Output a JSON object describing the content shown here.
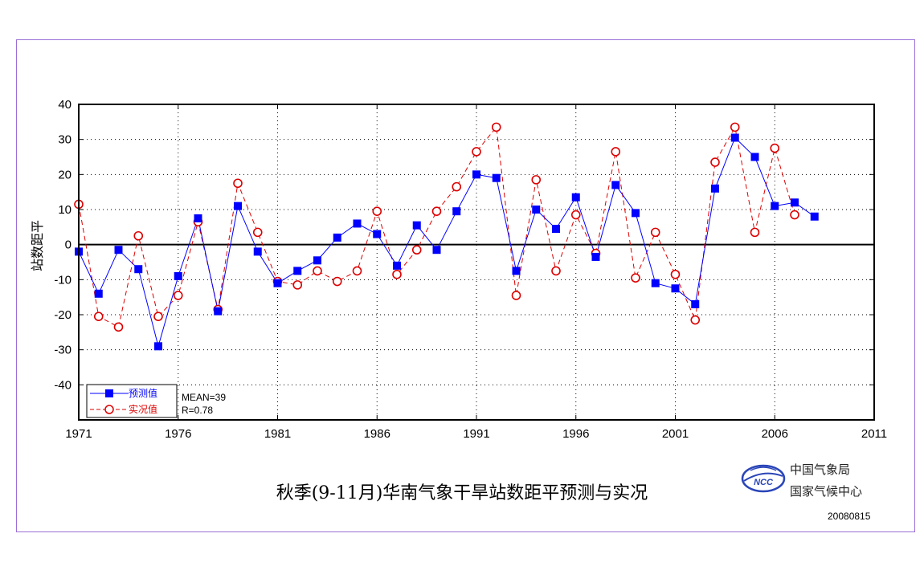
{
  "chart_data": {
    "type": "line",
    "title": "秋季(9-11月)华南气象干旱站数距平预测与实况",
    "xlabel": "",
    "ylabel": "站数距平",
    "xlim": [
      1971,
      2011
    ],
    "ylim": [
      -50,
      40
    ],
    "x_ticks": [
      1971,
      1976,
      1981,
      1986,
      1991,
      1996,
      2001,
      2006,
      2011
    ],
    "y_ticks": [
      -40,
      -30,
      -20,
      -10,
      0,
      10,
      20,
      30,
      40
    ],
    "grid": true,
    "legend_position": "bottom-left",
    "series": [
      {
        "name": "预测值",
        "color": "#0000ff",
        "marker": "square",
        "line_style": "solid",
        "x": [
          1971,
          1972,
          1973,
          1974,
          1975,
          1976,
          1977,
          1978,
          1979,
          1980,
          1981,
          1982,
          1983,
          1984,
          1985,
          1986,
          1987,
          1988,
          1989,
          1990,
          1991,
          1992,
          1993,
          1994,
          1995,
          1996,
          1997,
          1998,
          1999,
          2000,
          2001,
          2002,
          2003,
          2004,
          2005,
          2006,
          2007,
          2008
        ],
        "values": [
          -2,
          -14,
          -1.5,
          -7,
          -29,
          -9,
          7.5,
          -19,
          11,
          -2,
          -11,
          -7.5,
          -4.5,
          2,
          6,
          3,
          -6,
          5.5,
          -1.5,
          9.5,
          20,
          19,
          -7.5,
          10,
          4.5,
          13.5,
          -3.5,
          17,
          9,
          -11,
          -12.5,
          -17,
          16,
          30.5,
          25,
          11,
          12,
          8
        ]
      },
      {
        "name": "实况值",
        "color": "#dd0000",
        "marker": "circle",
        "line_style": "dashed",
        "x": [
          1971,
          1972,
          1973,
          1974,
          1975,
          1976,
          1977,
          1978,
          1979,
          1980,
          1981,
          1982,
          1983,
          1984,
          1985,
          1986,
          1987,
          1988,
          1989,
          1990,
          1991,
          1992,
          1993,
          1994,
          1995,
          1996,
          1997,
          1998,
          1999,
          2000,
          2001,
          2002,
          2003,
          2004,
          2005,
          2006,
          2007
        ],
        "values": [
          11.5,
          -20.5,
          -23.5,
          2.5,
          -20.5,
          -14.5,
          6.5,
          -18.5,
          17.5,
          3.5,
          -10.5,
          -11.5,
          -7.5,
          -10.5,
          -7.5,
          9.5,
          -8.5,
          -1.5,
          9.5,
          16.5,
          26.5,
          33.5,
          -14.5,
          18.5,
          -7.5,
          8.5,
          -2.5,
          26.5,
          -9.5,
          3.5,
          -8.5,
          -21.5,
          23.5,
          33.5,
          3.5,
          27.5,
          8.5
        ]
      }
    ],
    "annotations": [
      "MEAN=39",
      "R=0.78"
    ]
  },
  "colors": {
    "frame_border": "#9b6fd6",
    "forecast": "#0000ff",
    "observed": "#dd0000",
    "logo": "#2a45b8"
  },
  "logo": {
    "text": "NCC"
  },
  "org": {
    "line1": "中国气象局",
    "line2": "国家气候中心"
  },
  "date": "20080815"
}
